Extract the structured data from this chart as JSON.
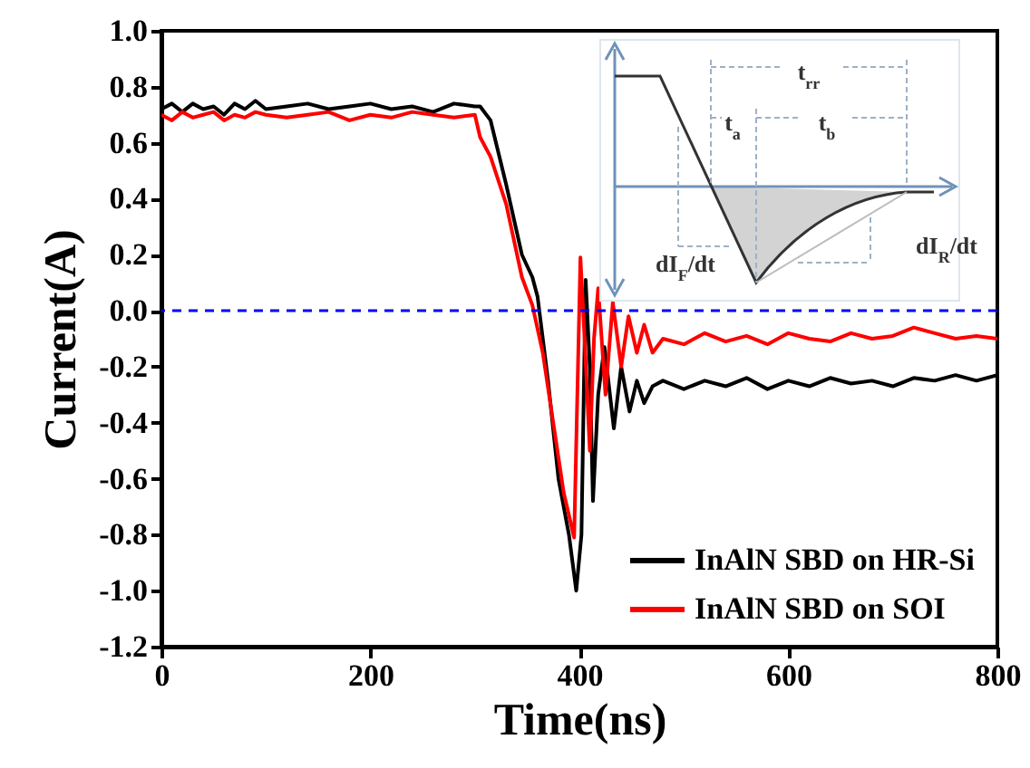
{
  "chart_data": {
    "type": "line",
    "xlabel": "Time(ns)",
    "ylabel": "Current(A)",
    "xlim": [
      0,
      800
    ],
    "xticks": [
      0,
      200,
      400,
      600,
      800
    ],
    "ylim": [
      -1.2,
      1.0
    ],
    "yticks": [
      {
        "value": -1.2,
        "label": "-1.2"
      },
      {
        "value": -1.0,
        "label": "-1.0"
      },
      {
        "value": -0.8,
        "label": "-0.8"
      },
      {
        "value": -0.6,
        "label": "-0.6"
      },
      {
        "value": -0.4,
        "label": "-0.4"
      },
      {
        "value": -0.2,
        "label": "-0.2"
      },
      {
        "value": 0,
        "label": "0.0"
      },
      {
        "value": 0.2,
        "label": "0.2"
      },
      {
        "value": 0.4,
        "label": "0.4"
      },
      {
        "value": 0.6,
        "label": "0.6"
      },
      {
        "value": 0.8,
        "label": "0.8"
      },
      {
        "value": 1.0,
        "label": "1.0"
      }
    ],
    "grid": false,
    "legend": "bottom right",
    "ref_lines": [
      {
        "axis": "y",
        "value": 0,
        "color": "#0000ff",
        "line_style": "dashed"
      }
    ],
    "annotations": [
      "t$_{rr}$",
      "t$_{a}$",
      "t$_{b}$",
      "dI$_{F}$/dt",
      "dI$_{R}$/dt"
    ],
    "series": [
      {
        "name": "InAlN SBD on HR-Si",
        "color": "#000000",
        "x": [
          0,
          10,
          20,
          30,
          40,
          50,
          60,
          70,
          80,
          90,
          100,
          120,
          140,
          160,
          180,
          200,
          220,
          240,
          260,
          280,
          300,
          305,
          315,
          330,
          345,
          355,
          360,
          370,
          380,
          390,
          397,
          402,
          406,
          410,
          413,
          418,
          424,
          433,
          440,
          448,
          455,
          462,
          470,
          480,
          500,
          520,
          540,
          560,
          580,
          600,
          620,
          640,
          660,
          680,
          700,
          720,
          740,
          760,
          780,
          800
        ],
        "values": [
          0.72,
          0.74,
          0.71,
          0.74,
          0.72,
          0.73,
          0.7,
          0.74,
          0.72,
          0.75,
          0.72,
          0.73,
          0.74,
          0.72,
          0.73,
          0.74,
          0.72,
          0.73,
          0.71,
          0.74,
          0.73,
          0.73,
          0.68,
          0.45,
          0.2,
          0.12,
          0.05,
          -0.25,
          -0.6,
          -0.8,
          -1.0,
          -0.8,
          0.11,
          -0.2,
          -0.68,
          -0.3,
          -0.13,
          -0.42,
          -0.2,
          -0.36,
          -0.25,
          -0.33,
          -0.27,
          -0.25,
          -0.28,
          -0.25,
          -0.27,
          -0.24,
          -0.28,
          -0.25,
          -0.27,
          -0.24,
          -0.26,
          -0.25,
          -0.27,
          -0.24,
          -0.25,
          -0.23,
          -0.25,
          -0.23
        ]
      },
      {
        "name": "InAlN SBD on SOI",
        "color": "#ff0000",
        "x": [
          0,
          10,
          20,
          30,
          40,
          50,
          60,
          70,
          80,
          90,
          100,
          120,
          140,
          160,
          180,
          200,
          220,
          240,
          260,
          280,
          300,
          305,
          315,
          330,
          345,
          355,
          365,
          375,
          385,
          395,
          401,
          405,
          410,
          414,
          418,
          425,
          432,
          440,
          447,
          455,
          462,
          470,
          480,
          500,
          520,
          540,
          560,
          580,
          600,
          620,
          640,
          660,
          680,
          700,
          720,
          740,
          760,
          780,
          800
        ],
        "values": [
          0.7,
          0.68,
          0.71,
          0.69,
          0.7,
          0.71,
          0.68,
          0.7,
          0.69,
          0.71,
          0.7,
          0.69,
          0.7,
          0.71,
          0.68,
          0.7,
          0.69,
          0.71,
          0.7,
          0.69,
          0.7,
          0.62,
          0.55,
          0.38,
          0.12,
          0.02,
          -0.15,
          -0.4,
          -0.65,
          -0.81,
          0.19,
          -0.1,
          -0.5,
          -0.1,
          0.08,
          -0.3,
          0.03,
          -0.2,
          -0.02,
          -0.15,
          -0.05,
          -0.15,
          -0.1,
          -0.12,
          -0.08,
          -0.11,
          -0.09,
          -0.12,
          -0.08,
          -0.1,
          -0.11,
          -0.08,
          -0.1,
          -0.09,
          -0.06,
          -0.08,
          -0.1,
          -0.09,
          -0.1
        ]
      }
    ]
  }
}
